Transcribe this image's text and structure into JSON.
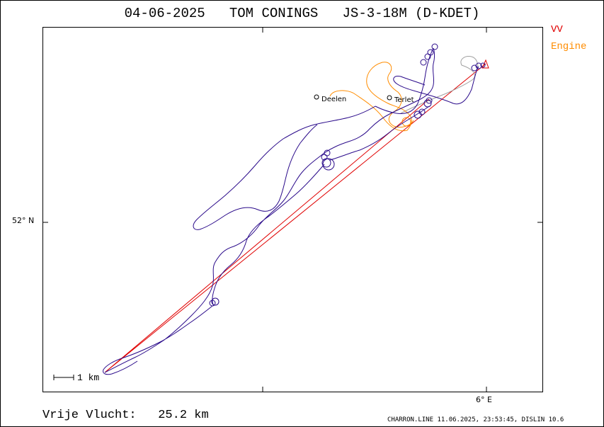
{
  "header": {
    "date": "04-06-2025",
    "pilot": "TOM CONINGS",
    "glider": "JS-3-18M (D-KDET)"
  },
  "legend": {
    "vv_label": "VV",
    "engine_label": "Engine",
    "vv_color": "#e00000",
    "engine_color": "#ff8c00",
    "track_color": "#2a0a8a",
    "track_alt_color": "#a0a0a0"
  },
  "axes": {
    "lat_label": "52° N",
    "lon_label": "6° E"
  },
  "scale": {
    "label": "1 km"
  },
  "places": {
    "deelen": "Deelen",
    "terlet": "Terlet"
  },
  "summary": {
    "label": "Vrije Vlucht:",
    "distance": "25.2 km"
  },
  "footer": {
    "text": "CHARRON.LINE 11.06.2025, 23:53:45, DISLIN 10.6"
  }
}
